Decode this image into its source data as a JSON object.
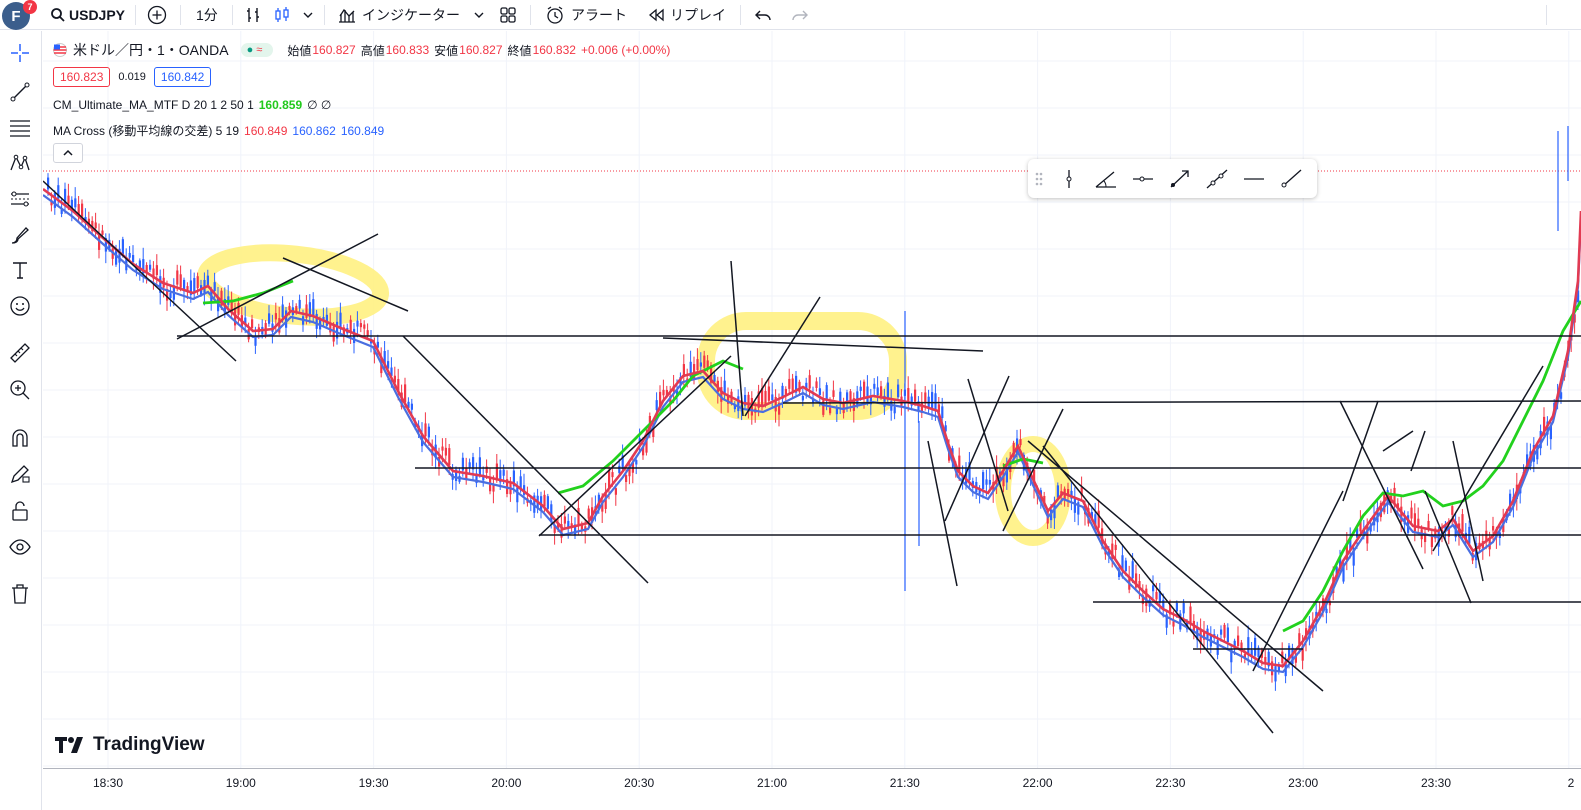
{
  "topbar": {
    "avatar_letter": "F",
    "avatar_badge": "7",
    "symbol": "USDJPY",
    "interval": "1分",
    "indicators_label": "インジケーター",
    "alert_label": "アラート",
    "replay_label": "リプレイ"
  },
  "legend": {
    "title": "米ドル／円・1・OANDA",
    "open_label": "始値",
    "open": "160.827",
    "high_label": "高値",
    "high": "160.833",
    "low_label": "安値",
    "low": "160.827",
    "close_label": "終値",
    "close": "160.832",
    "change": "+0.006 (+0.00%)",
    "bid": "160.823",
    "spread": "0.019",
    "ask": "160.842",
    "indicator1_name": "CM_Ultimate_MA_MTF D 20 1 2 50 1",
    "indicator1_value": "160.859",
    "indicator2_name": "MA Cross (移動平均線の交差) 5 19",
    "indicator2_v1": "160.849",
    "indicator2_v2": "160.862",
    "indicator2_v3": "160.849"
  },
  "colors": {
    "up": "#f23645",
    "down": "#2962ff",
    "ma_red": "#e23a52",
    "ma_green": "#22d11d",
    "ma_blue": "#4a6ee0",
    "highlight": "#fff07a"
  },
  "brand": "TradingView",
  "time_axis": {
    "ticks": [
      "18:30",
      "19:00",
      "19:30",
      "20:00",
      "20:30",
      "21:00",
      "21:30",
      "22:00",
      "22:30",
      "23:00",
      "23:30",
      "2"
    ]
  },
  "chart_data": {
    "type": "candlestick",
    "series": [
      {
        "name": "USDJPY 1m",
        "ma_close_path": [
          [
            0,
            158
          ],
          [
            30,
            180
          ],
          [
            60,
            207
          ],
          [
            90,
            233
          ],
          [
            120,
            252
          ],
          [
            150,
            262
          ],
          [
            165,
            255
          ],
          [
            185,
            278
          ],
          [
            210,
            300
          ],
          [
            230,
            298
          ],
          [
            248,
            280
          ],
          [
            270,
            285
          ],
          [
            300,
            298
          ],
          [
            330,
            310
          ],
          [
            355,
            360
          ],
          [
            380,
            405
          ],
          [
            410,
            440
          ],
          [
            440,
            445
          ],
          [
            470,
            452
          ],
          [
            500,
            475
          ],
          [
            520,
            498
          ],
          [
            545,
            492
          ],
          [
            560,
            465
          ],
          [
            580,
            440
          ],
          [
            600,
            410
          ],
          [
            620,
            370
          ],
          [
            640,
            345
          ],
          [
            660,
            340
          ],
          [
            680,
            362
          ],
          [
            700,
            372
          ],
          [
            720,
            375
          ],
          [
            740,
            366
          ],
          [
            760,
            356
          ],
          [
            780,
            368
          ],
          [
            800,
            372
          ],
          [
            830,
            365
          ],
          [
            860,
            370
          ],
          [
            880,
            375
          ],
          [
            895,
            380
          ],
          [
            905,
            412
          ],
          [
            915,
            440
          ],
          [
            930,
            455
          ],
          [
            945,
            462
          ],
          [
            960,
            440
          ],
          [
            975,
            415
          ],
          [
            990,
            448
          ],
          [
            1005,
            480
          ],
          [
            1020,
            462
          ],
          [
            1040,
            470
          ],
          [
            1060,
            510
          ],
          [
            1080,
            540
          ],
          [
            1100,
            560
          ],
          [
            1120,
            578
          ],
          [
            1140,
            588
          ],
          [
            1160,
            600
          ],
          [
            1180,
            610
          ],
          [
            1200,
            620
          ],
          [
            1220,
            632
          ],
          [
            1240,
            635
          ],
          [
            1260,
            610
          ],
          [
            1280,
            575
          ],
          [
            1300,
            530
          ],
          [
            1320,
            500
          ],
          [
            1345,
            465
          ],
          [
            1370,
            495
          ],
          [
            1395,
            500
          ],
          [
            1410,
            488
          ],
          [
            1430,
            520
          ],
          [
            1450,
            505
          ],
          [
            1470,
            470
          ],
          [
            1490,
            420
          ],
          [
            1510,
            385
          ],
          [
            1525,
            320
          ],
          [
            1535,
            250
          ],
          [
            1538,
            180
          ]
        ]
      }
    ]
  }
}
